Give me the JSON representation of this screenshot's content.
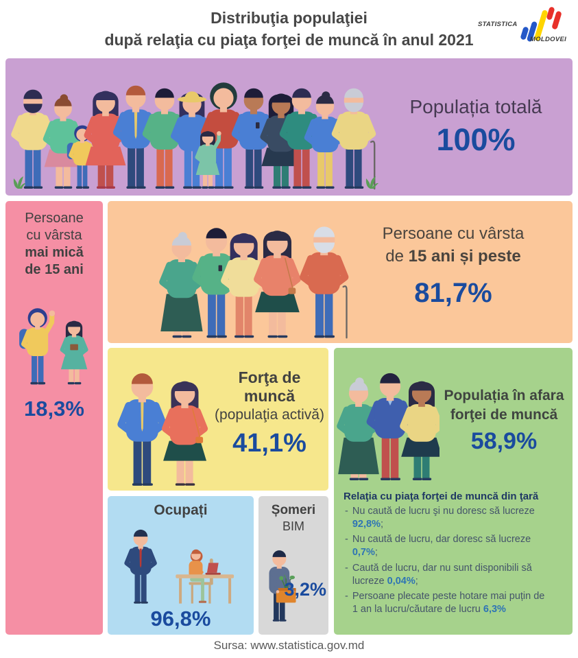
{
  "header": {
    "title_line1": "Distribuţia populaţiei",
    "title_line2": "după relaţia cu piaţa forţei de muncă în anul 2021",
    "logo": {
      "text_top": "STATISTICA",
      "text_bottom": "MOLDOVEI"
    }
  },
  "total_box": {
    "label": "Populația totală",
    "value": "100%"
  },
  "under15_box": {
    "lines": [
      "Persoane",
      "cu vârsta",
      "mai mică",
      "de 15 ani"
    ],
    "value": "18,3%"
  },
  "over15_box": {
    "line1": "Persoane cu vârsta",
    "line2_pre": "de ",
    "line2_bold": "15 ani și peste",
    "value": "81,7%"
  },
  "labour_box": {
    "title": "Forţa de muncă",
    "subtitle": "(populaţia activă)",
    "value": "41,1%"
  },
  "outside_box": {
    "title_line1": "Populația în afara",
    "title_line2": "forţei de muncă",
    "value": "58,9%",
    "details_title": "Relaţia cu piaţa forţei de muncă din ţară",
    "bullets": [
      {
        "pre": "Nu caută de lucru şi nu doresc să lucreze ",
        "value": "92,8%",
        "post": ";"
      },
      {
        "pre": "Nu caută de lucru, dar doresc să lucreze ",
        "value": "0,7%",
        "post": ";"
      },
      {
        "pre": "Caută de lucru, dar nu sunt disponibili să lucreze ",
        "value": "0,04%",
        "post": ";"
      },
      {
        "pre": "Persoane plecate peste hotare mai puțin de 1 an la lucru/căutare de lucru ",
        "value": "6,3%",
        "post": ""
      }
    ]
  },
  "employed_box": {
    "title": "Ocupați",
    "value": "96,8%"
  },
  "unemployed_box": {
    "title_line1": "Șomeri",
    "title_line2": "BIM",
    "value": "3,2%"
  },
  "footer": {
    "source": "Sursa: www.statistica.gov.md"
  },
  "colors": {
    "purple": "#c9a0d2",
    "pink": "#f58fa4",
    "orange": "#fbc79a",
    "yellow": "#f6e78c",
    "green": "#a6d28c",
    "blue": "#b2dcf2",
    "gray": "#d8d8d8",
    "value_blue": "#1a4b9e",
    "detail_pct_blue": "#2e74b5",
    "text_dark": "#474747",
    "logo_blue": "#2458c8",
    "logo_yellow": "#ffd500",
    "logo_red": "#e8312a"
  },
  "chart_data": {
    "type": "hierarchy",
    "title": "Distribuţia populaţiei după relaţia cu piaţa forţei de muncă în anul 2021",
    "nodes": [
      {
        "label": "Populația totală",
        "value_pct": 100,
        "parent": null
      },
      {
        "label": "Persoane cu vârsta mai mică de 15 ani",
        "value_pct": 18.3,
        "parent": "Populația totală"
      },
      {
        "label": "Persoane cu vârsta de 15 ani și peste",
        "value_pct": 81.7,
        "parent": "Populația totală"
      },
      {
        "label": "Forţa de muncă (populaţia activă)",
        "value_pct": 41.1,
        "parent": "Persoane cu vârsta de 15 ani și peste"
      },
      {
        "label": "Populația în afara forţei de muncă",
        "value_pct": 58.9,
        "parent": "Persoane cu vârsta de 15 ani și peste"
      },
      {
        "label": "Ocupați",
        "value_pct": 96.8,
        "parent": "Forţa de muncă (populaţia activă)"
      },
      {
        "label": "Șomeri BIM",
        "value_pct": 3.2,
        "parent": "Forţa de muncă (populaţia activă)"
      },
      {
        "label": "Nu caută de lucru şi nu doresc să lucreze",
        "value_pct": 92.8,
        "parent": "Populația în afara forţei de muncă"
      },
      {
        "label": "Nu caută de lucru, dar doresc să lucreze",
        "value_pct": 0.7,
        "parent": "Populația în afara forţei de muncă"
      },
      {
        "label": "Caută de lucru, dar nu sunt disponibili să lucreze",
        "value_pct": 0.04,
        "parent": "Populația în afara forţei de muncă"
      },
      {
        "label": "Persoane plecate peste hotare mai puțin de 1 an la lucru/căutare de lucru",
        "value_pct": 6.3,
        "parent": "Populația în afara forţei de muncă"
      }
    ]
  }
}
